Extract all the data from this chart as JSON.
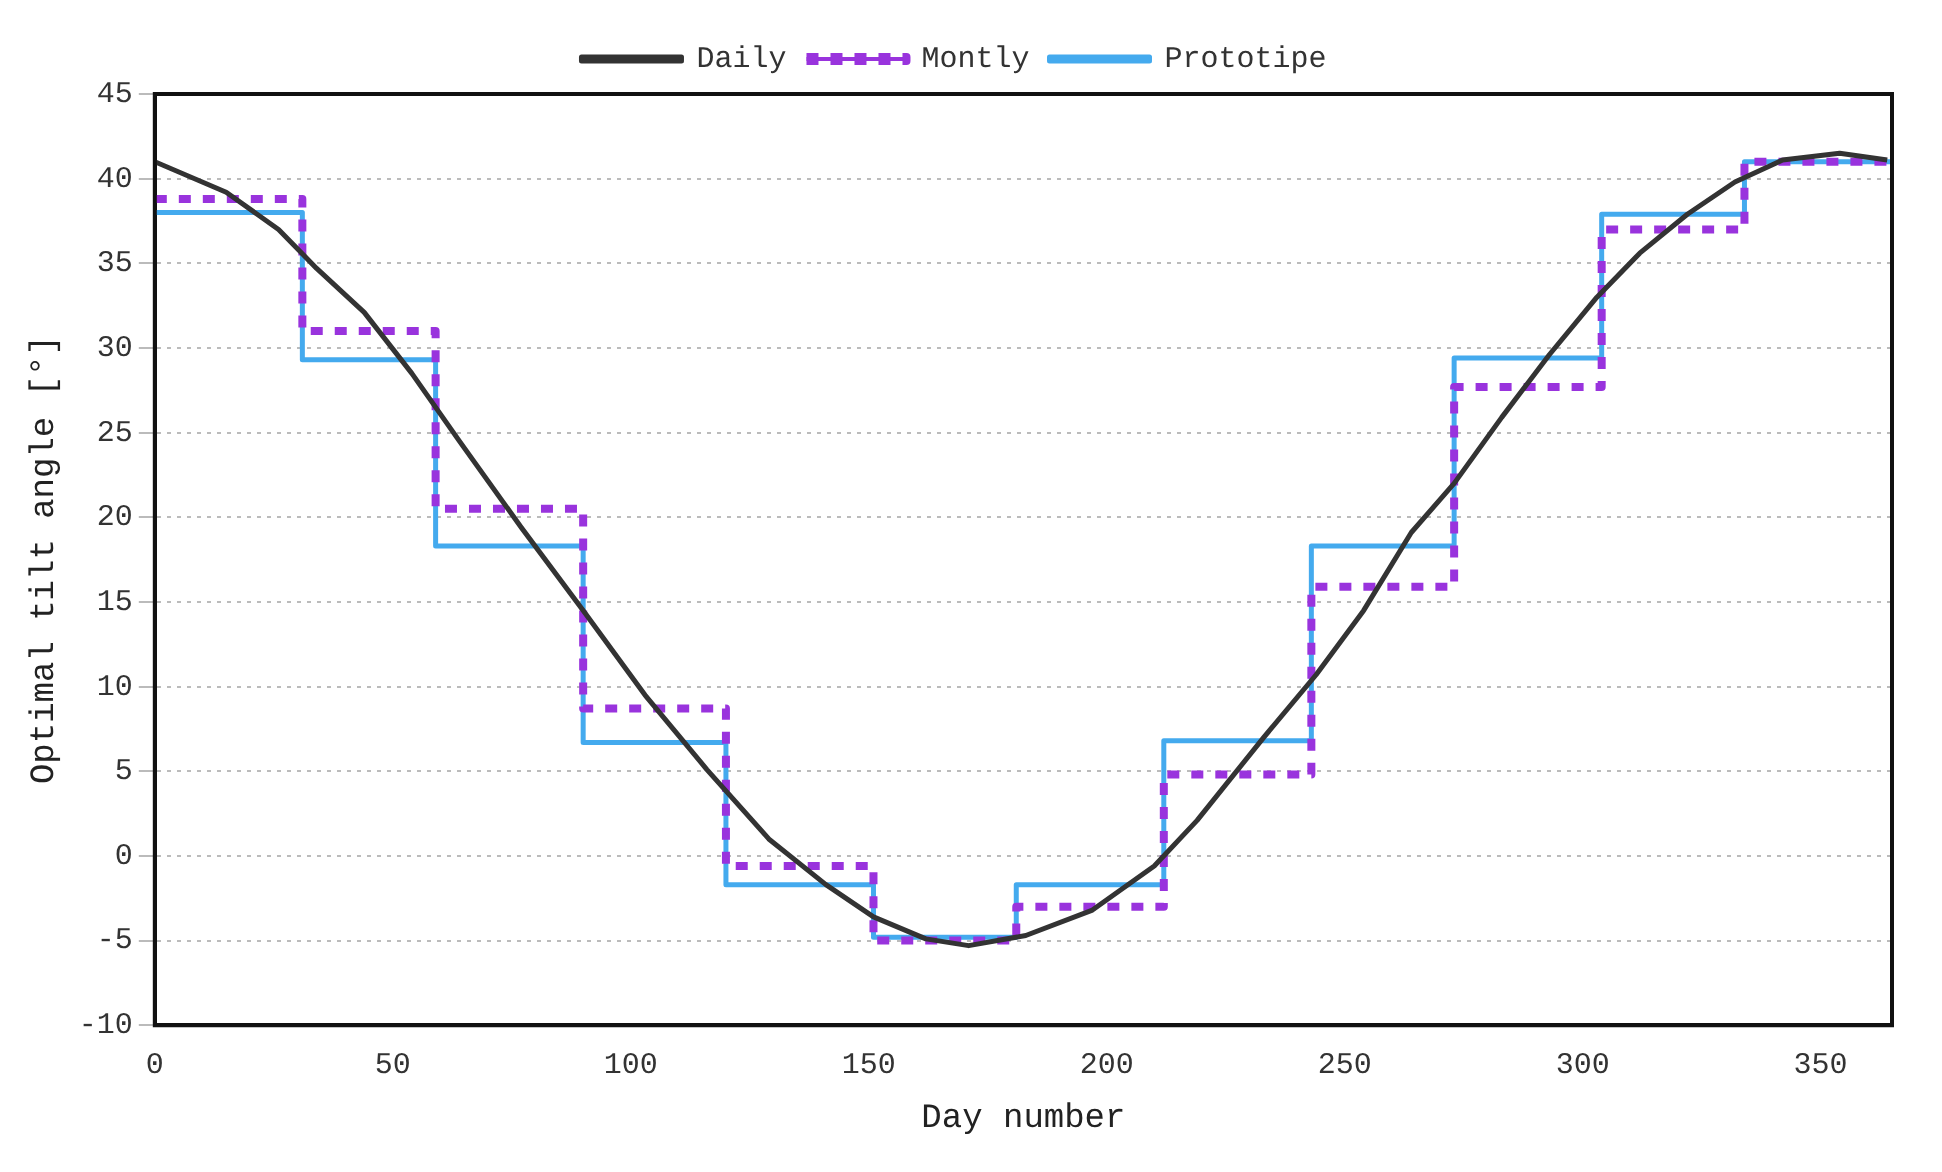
{
  "chart_data": {
    "type": "line",
    "xlabel": "Day number",
    "ylabel": "Optimal tilt angle [°]",
    "xlim": [
      0,
      365
    ],
    "xticks": [
      0,
      50,
      100,
      150,
      200,
      250,
      300,
      350
    ],
    "ylim": [
      -10,
      45
    ],
    "yticks": [
      -10,
      -5,
      0,
      5,
      10,
      15,
      20,
      25,
      30,
      35,
      40,
      45
    ],
    "grid": "y",
    "legend": "top",
    "marker": "none",
    "series": [
      {
        "name": "Daily",
        "type": "line",
        "color": "#333333",
        "line_style": "solid",
        "x": [
          0,
          15,
          26,
          34,
          44,
          54,
          64,
          77,
          90,
          103,
          116,
          129,
          141,
          151,
          162,
          171,
          183,
          197,
          210,
          219,
          233,
          244,
          254,
          264,
          273,
          283,
          293,
          303,
          312,
          322,
          332,
          342,
          354,
          364
        ],
        "values": [
          41.0,
          39.2,
          37.0,
          34.7,
          32.1,
          28.5,
          24.5,
          19.4,
          14.5,
          9.5,
          5.1,
          1.0,
          -1.7,
          -3.6,
          -4.9,
          -5.3,
          -4.7,
          -3.2,
          -0.6,
          2.1,
          7.0,
          10.7,
          14.5,
          19.1,
          22.0,
          25.9,
          29.6,
          33.0,
          35.6,
          37.9,
          39.8,
          41.1,
          41.5,
          41.1
        ]
      },
      {
        "name": "Montly",
        "type": "step",
        "color": "#9933dd",
        "line_style": "dashed",
        "x": [
          0,
          31,
          59,
          90,
          120,
          151,
          181,
          212,
          243,
          273,
          304,
          334,
          365
        ],
        "values": [
          38.8,
          31.0,
          20.5,
          8.7,
          -0.6,
          -5.0,
          -3.0,
          4.8,
          15.9,
          27.7,
          37.0,
          41.0,
          41.0
        ]
      },
      {
        "name": "Prototipe",
        "type": "step",
        "color": "#44aaee",
        "line_style": "solid",
        "x": [
          0,
          31,
          59,
          90,
          120,
          151,
          181,
          212,
          243,
          273,
          304,
          334,
          365
        ],
        "values": [
          38.0,
          29.3,
          18.3,
          6.7,
          -1.7,
          -4.8,
          -1.7,
          6.8,
          18.3,
          29.4,
          37.9,
          41.0,
          41.0
        ]
      }
    ]
  }
}
